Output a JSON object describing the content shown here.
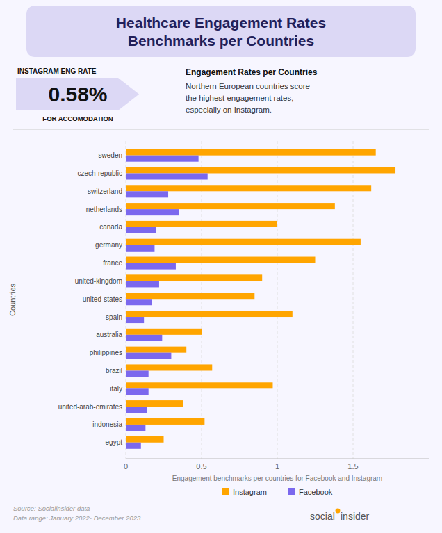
{
  "chart_data": {
    "type": "bar",
    "orientation": "horizontal",
    "title": "Healthcare Engagement Rates\nBenchmarks per Countries",
    "xlabel": "Engagement benchmarks per countries for Facebook and Instagram",
    "ylabel": "Countries",
    "annotations": [
      "INSTAGRAM ENG RATE",
      "0.58%",
      "FOR ACCOMODATION",
      "Engagement Rates per Countries",
      "Northern European countries score\nthe highest engagement rates,\nespecially on Instagram.",
      "Source: Socialinsider data\nData range: January 2022- December 2023",
      "social",
      "insider"
    ],
    "categories": [
      "egypt",
      "indonesia",
      "united-arab-emirates",
      "italy",
      "brazil",
      "philippines",
      "australia",
      "spain",
      "united-states",
      "united-kingdom",
      "france",
      "germany",
      "canada",
      "netherlands",
      "switzerland",
      "czech-republic",
      "sweden"
    ],
    "series": [
      {
        "name": "Instagram",
        "color": "#FFA500",
        "values": [
          0.25,
          0.52,
          0.38,
          0.97,
          0.57,
          0.4,
          0.5,
          1.1,
          0.85,
          0.9,
          1.25,
          1.55,
          1.0,
          1.38,
          1.62,
          1.78,
          1.65
        ]
      },
      {
        "name": "Facebook",
        "color": "#7B68EE",
        "values": [
          0.1,
          0.13,
          0.14,
          0.15,
          0.15,
          0.3,
          0.24,
          0.12,
          0.17,
          0.22,
          0.33,
          0.19,
          0.2,
          0.35,
          0.28,
          0.54,
          0.48
        ]
      }
    ],
    "xlim": [
      0,
      2.0
    ],
    "xticks": [
      0,
      0.5,
      1,
      1.5
    ],
    "grid": true,
    "legend": "bottom"
  }
}
